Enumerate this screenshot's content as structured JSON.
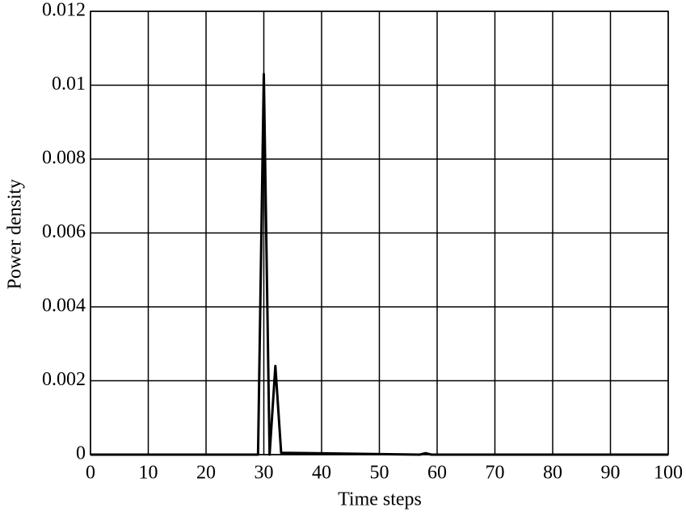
{
  "chart_data": {
    "type": "line",
    "x_label": "Time steps",
    "y_label": "Power density",
    "x": [
      0,
      29,
      30,
      31,
      32,
      33,
      57,
      58,
      59,
      100
    ],
    "series": [
      {
        "name": "Power density",
        "color": "#000000",
        "values": [
          0,
          0,
          0.0103,
          0,
          0.0024,
          5e-05,
          0,
          4e-05,
          0,
          0
        ]
      }
    ],
    "xlim": [
      0,
      100
    ],
    "xticks": [
      0,
      10,
      20,
      30,
      40,
      50,
      60,
      70,
      80,
      90,
      100
    ],
    "ylim": [
      0,
      0.012
    ],
    "yticks": [
      0,
      0.002,
      0.004,
      0.006,
      0.008,
      0.01,
      0.012
    ],
    "grid": true
  }
}
